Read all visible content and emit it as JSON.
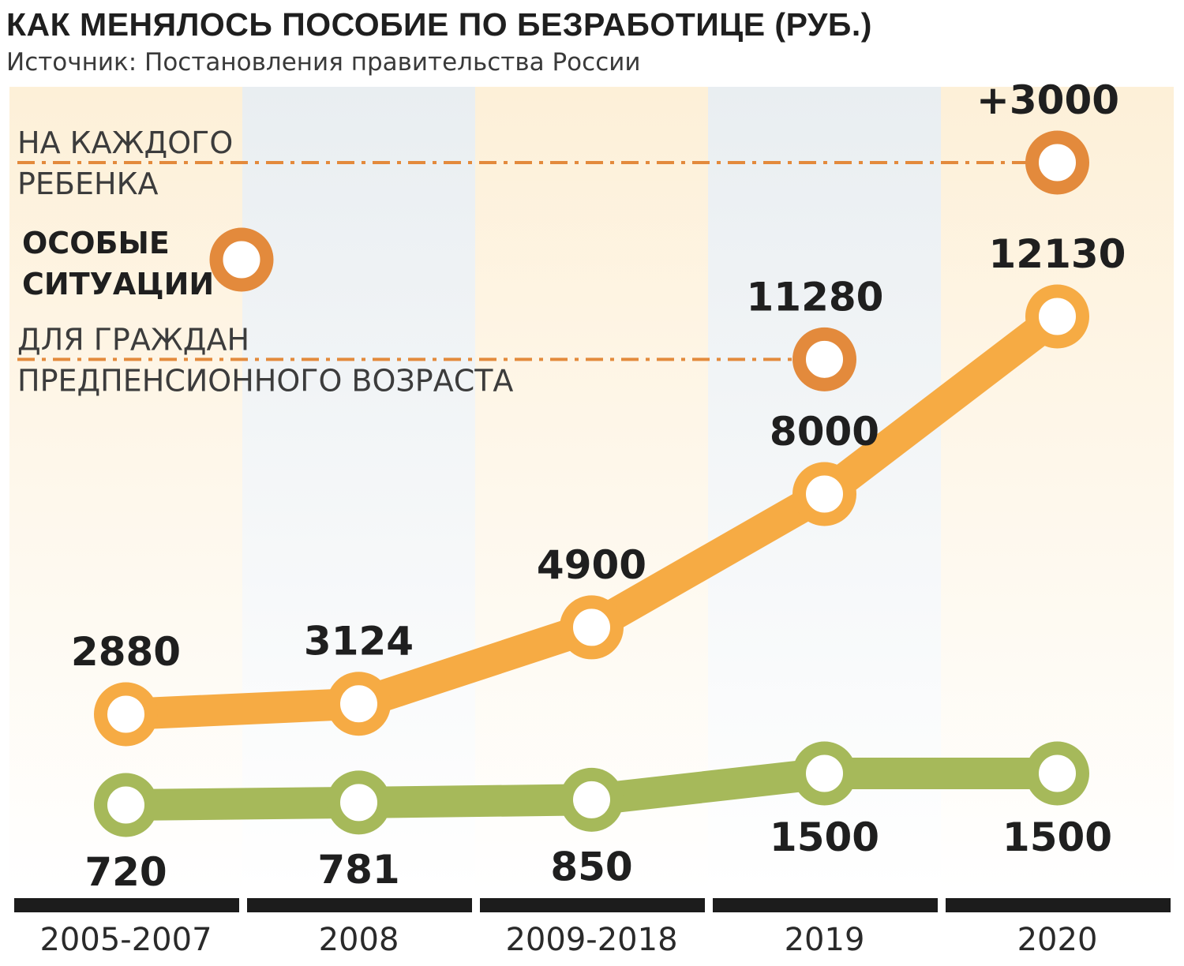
{
  "header": {
    "title": "КАК МЕНЯЛОСЬ ПОСОБИЕ ПО БЕЗРАБОТИЦЕ (РУБ.)",
    "source": "Источник: Постановления правительства России"
  },
  "colors": {
    "max_series": "#f6ab44",
    "min_series": "#a6b95a",
    "special": "#e38a3c",
    "band_warm": "#fdf0d8",
    "band_cool": "#e9eef1",
    "axis_bar": "#1c1c1c"
  },
  "chart_data": {
    "type": "line",
    "title": "КАК МЕНЯЛОСЬ ПОСОБИЕ ПО БЕЗРАБОТИЦЕ (РУБ.)",
    "categories": [
      "2005-2007",
      "2008",
      "2009-2018",
      "2019",
      "2020"
    ],
    "series": [
      {
        "key": "max",
        "values": [
          2880,
          3124,
          4900,
          8000,
          12130
        ]
      },
      {
        "key": "min",
        "values": [
          720,
          781,
          850,
          1500,
          1500
        ]
      }
    ],
    "special": {
      "legend_label_line1": "ОСОБЫЕ",
      "legend_label_line2": "СИТУАЦИИ",
      "points": [
        {
          "category": "2019",
          "value": 11280,
          "label": "11280",
          "note_line1": "ДЛЯ ГРАЖДАН",
          "note_line2": "ПРЕДПЕНСИОННОГО ВОЗРАСТА"
        },
        {
          "category": "2020",
          "value": 3000,
          "label": "+3000",
          "note_line1": "НА КАЖДОГО",
          "note_line2": "РЕБЕНКА"
        }
      ]
    },
    "grid": false,
    "legend": "left"
  }
}
